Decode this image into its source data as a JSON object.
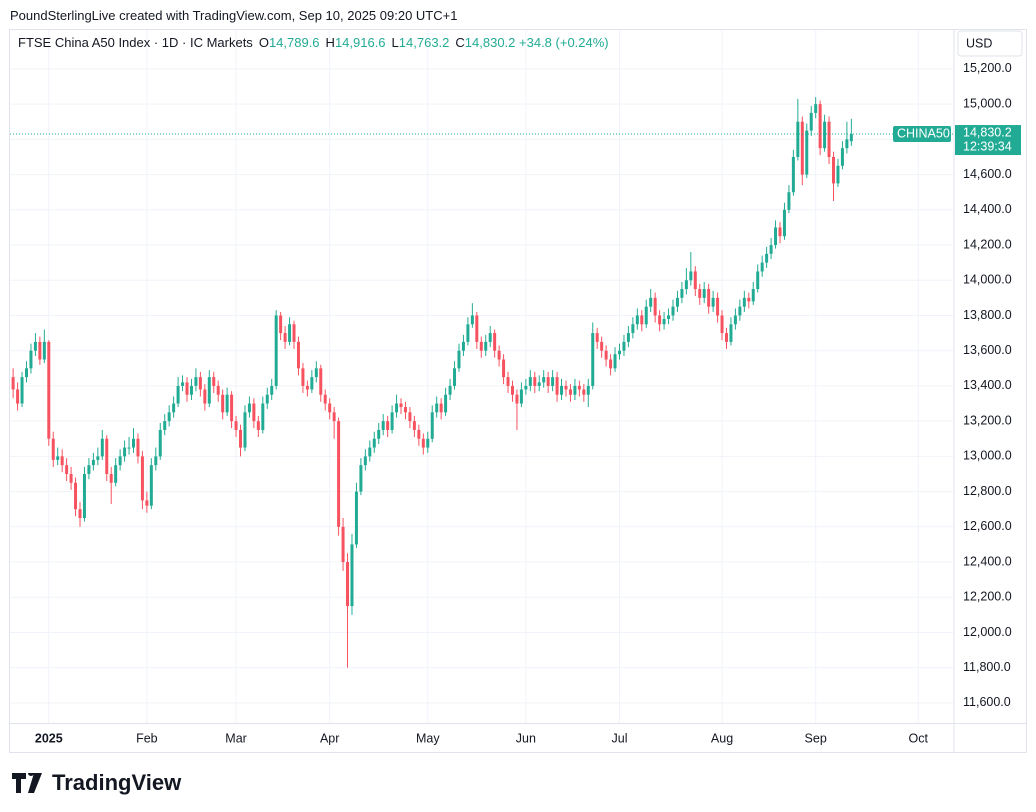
{
  "top_text": "PoundSterlingLive created with TradingView.com, Sep 10, 2025 09:20 UTC+1",
  "logo": "TradingView",
  "chart_data": {
    "type": "candlestick",
    "title": "FTSE China A50 Index · 1D · IC Markets",
    "ohlc_header": [
      {
        "label": "O",
        "value": "14,789.6"
      },
      {
        "label": "H",
        "value": "14,916.6"
      },
      {
        "label": "L",
        "value": "14,763.2"
      },
      {
        "label": "C",
        "value": "14,830.2"
      }
    ],
    "change": "+34.8 (+0.24%)",
    "currency": "USD",
    "symbol_tag": "CHINA50",
    "last_label": "14,830.2",
    "countdown": "12:39:34",
    "up_color": "#22ab94",
    "down_color": "#f7525f",
    "grid": true,
    "ylim": [
      11486,
      15421
    ],
    "xlim": [
      -0.7,
      210.8
    ],
    "yticks": [
      {
        "value": 11600,
        "label": "11,600.0"
      },
      {
        "value": 11800,
        "label": "11,800.0"
      },
      {
        "value": 12000,
        "label": "12,000.0"
      },
      {
        "value": 12200,
        "label": "12,200.0"
      },
      {
        "value": 12400,
        "label": "12,400.0"
      },
      {
        "value": 12600,
        "label": "12,600.0"
      },
      {
        "value": 12800,
        "label": "12,800.0"
      },
      {
        "value": 13000,
        "label": "13,000.0"
      },
      {
        "value": 13200,
        "label": "13,200.0"
      },
      {
        "value": 13400,
        "label": "13,400.0"
      },
      {
        "value": 13600,
        "label": "13,600.0"
      },
      {
        "value": 13800,
        "label": "13,800.0"
      },
      {
        "value": 14000,
        "label": "14,000.0"
      },
      {
        "value": 14200,
        "label": "14,200.0"
      },
      {
        "value": 14400,
        "label": "14,400.0"
      },
      {
        "value": 14600,
        "label": "14,600.0"
      },
      {
        "value": 14800,
        "label": "14,800.0"
      },
      {
        "value": 15000,
        "label": "15,000.0"
      },
      {
        "value": 15200,
        "label": "15,200.0"
      }
    ],
    "xticks": [
      {
        "value": 8,
        "label": "2025"
      },
      {
        "value": 30,
        "label": "Feb"
      },
      {
        "value": 50,
        "label": "Mar"
      },
      {
        "value": 71,
        "label": "Apr"
      },
      {
        "value": 93,
        "label": "May"
      },
      {
        "value": 115,
        "label": "Jun"
      },
      {
        "value": 136,
        "label": "Jul"
      },
      {
        "value": 159,
        "label": "Aug"
      },
      {
        "value": 180,
        "label": "Sep"
      },
      {
        "value": 203,
        "label": "Oct"
      }
    ],
    "x": [
      0,
      1,
      2,
      3,
      4,
      5,
      6,
      7,
      8,
      9,
      10,
      11,
      12,
      13,
      14,
      15,
      16,
      17,
      18,
      19,
      20,
      21,
      22,
      23,
      24,
      25,
      26,
      27,
      28,
      29,
      30,
      31,
      32,
      33,
      34,
      35,
      36,
      37,
      38,
      39,
      40,
      41,
      42,
      43,
      44,
      45,
      46,
      47,
      48,
      49,
      50,
      51,
      52,
      53,
      54,
      55,
      56,
      57,
      58,
      59,
      60,
      61,
      62,
      63,
      64,
      65,
      66,
      67,
      68,
      69,
      70,
      71,
      72,
      73,
      74,
      75,
      76,
      77,
      78,
      79,
      80,
      81,
      82,
      83,
      84,
      85,
      86,
      87,
      88,
      89,
      90,
      91,
      92,
      93,
      94,
      95,
      96,
      97,
      98,
      99,
      100,
      101,
      102,
      103,
      104,
      105,
      106,
      107,
      108,
      109,
      110,
      111,
      112,
      113,
      114,
      115,
      116,
      117,
      118,
      119,
      120,
      121,
      122,
      123,
      124,
      125,
      126,
      127,
      128,
      129,
      130,
      131,
      132,
      133,
      134,
      135,
      136,
      137,
      138,
      139,
      140,
      141,
      142,
      143,
      144,
      145,
      146,
      147,
      148,
      149,
      150,
      151,
      152,
      153,
      154,
      155,
      156,
      157,
      158,
      159,
      160,
      161,
      162,
      163,
      164,
      165,
      166,
      167,
      168,
      169,
      170,
      171,
      172,
      173,
      174,
      175,
      176,
      177,
      178,
      179,
      180,
      181,
      182,
      183,
      184,
      185,
      186,
      187,
      188
    ],
    "ohlc": [
      [
        13450,
        13500,
        13330,
        13380
      ],
      [
        13380,
        13420,
        13260,
        13300
      ],
      [
        13300,
        13480,
        13280,
        13450
      ],
      [
        13450,
        13540,
        13420,
        13500
      ],
      [
        13500,
        13640,
        13470,
        13600
      ],
      [
        13600,
        13700,
        13570,
        13650
      ],
      [
        13650,
        13680,
        13520,
        13550
      ],
      [
        13550,
        13720,
        13530,
        13650
      ],
      [
        13650,
        13660,
        13060,
        13100
      ],
      [
        13100,
        13140,
        12940,
        12980
      ],
      [
        12980,
        13050,
        12950,
        13000
      ],
      [
        13000,
        13040,
        12910,
        12950
      ],
      [
        12950,
        12990,
        12860,
        12900
      ],
      [
        12900,
        12940,
        12810,
        12850
      ],
      [
        12850,
        12880,
        12660,
        12700
      ],
      [
        12700,
        12740,
        12600,
        12650
      ],
      [
        12650,
        12940,
        12630,
        12900
      ],
      [
        12900,
        12990,
        12870,
        12950
      ],
      [
        12950,
        13020,
        12920,
        12980
      ],
      [
        12980,
        13050,
        12950,
        13000
      ],
      [
        13000,
        13150,
        12980,
        13100
      ],
      [
        13100,
        13120,
        12860,
        12900
      ],
      [
        12900,
        12940,
        12730,
        12850
      ],
      [
        12850,
        12990,
        12830,
        12950
      ],
      [
        12950,
        13040,
        12920,
        13000
      ],
      [
        13000,
        13090,
        12970,
        13050
      ],
      [
        13050,
        13110,
        13010,
        13050
      ],
      [
        13050,
        13160,
        13020,
        13100
      ],
      [
        13100,
        13130,
        12960,
        13000
      ],
      [
        13000,
        13030,
        12700,
        12750
      ],
      [
        12750,
        12800,
        12680,
        12720
      ],
      [
        12720,
        12990,
        12700,
        12950
      ],
      [
        12950,
        13050,
        12920,
        13000
      ],
      [
        13000,
        13190,
        12980,
        13150
      ],
      [
        13150,
        13240,
        13120,
        13200
      ],
      [
        13200,
        13290,
        13170,
        13250
      ],
      [
        13250,
        13340,
        13220,
        13300
      ],
      [
        13300,
        13450,
        13280,
        13400
      ],
      [
        13400,
        13460,
        13370,
        13420
      ],
      [
        13420,
        13450,
        13310,
        13350
      ],
      [
        13350,
        13440,
        13320,
        13400
      ],
      [
        13400,
        13500,
        13370,
        13450
      ],
      [
        13450,
        13480,
        13340,
        13380
      ],
      [
        13380,
        13410,
        13260,
        13300
      ],
      [
        13300,
        13490,
        13280,
        13450
      ],
      [
        13450,
        13480,
        13360,
        13400
      ],
      [
        13400,
        13430,
        13310,
        13350
      ],
      [
        13350,
        13380,
        13210,
        13250
      ],
      [
        13250,
        13390,
        13230,
        13350
      ],
      [
        13350,
        13370,
        13160,
        13200
      ],
      [
        13200,
        13230,
        13110,
        13150
      ],
      [
        13150,
        13180,
        13000,
        13050
      ],
      [
        13050,
        13290,
        13030,
        13250
      ],
      [
        13250,
        13340,
        13220,
        13300
      ],
      [
        13300,
        13330,
        13160,
        13200
      ],
      [
        13200,
        13230,
        13110,
        13150
      ],
      [
        13150,
        13340,
        13130,
        13300
      ],
      [
        13300,
        13390,
        13270,
        13350
      ],
      [
        13350,
        13440,
        13320,
        13400
      ],
      [
        13400,
        13830,
        13380,
        13800
      ],
      [
        13800,
        13820,
        13660,
        13700
      ],
      [
        13700,
        13740,
        13610,
        13650
      ],
      [
        13650,
        13790,
        13630,
        13750
      ],
      [
        13750,
        13770,
        13610,
        13650
      ],
      [
        13650,
        13680,
        13460,
        13500
      ],
      [
        13500,
        13530,
        13360,
        13400
      ],
      [
        13400,
        13430,
        13340,
        13380
      ],
      [
        13380,
        13490,
        13360,
        13450
      ],
      [
        13450,
        13540,
        13420,
        13500
      ],
      [
        13500,
        13520,
        13310,
        13350
      ],
      [
        13350,
        13380,
        13260,
        13300
      ],
      [
        13300,
        13330,
        13210,
        13250
      ],
      [
        13250,
        13280,
        13100,
        13200
      ],
      [
        13200,
        13220,
        12550,
        12600
      ],
      [
        12600,
        12650,
        12350,
        12400
      ],
      [
        12400,
        12450,
        11800,
        12150
      ],
      [
        12150,
        12560,
        12100,
        12500
      ],
      [
        12500,
        12850,
        12480,
        12800
      ],
      [
        12800,
        12990,
        12780,
        12950
      ],
      [
        12950,
        13040,
        12920,
        13000
      ],
      [
        13000,
        13090,
        12970,
        13050
      ],
      [
        13050,
        13140,
        13020,
        13100
      ],
      [
        13100,
        13190,
        13070,
        13150
      ],
      [
        13150,
        13240,
        13120,
        13200
      ],
      [
        13200,
        13230,
        13110,
        13150
      ],
      [
        13150,
        13290,
        13130,
        13250
      ],
      [
        13250,
        13350,
        13220,
        13300
      ],
      [
        13300,
        13330,
        13240,
        13280
      ],
      [
        13280,
        13310,
        13210,
        13250
      ],
      [
        13250,
        13280,
        13160,
        13200
      ],
      [
        13200,
        13230,
        13110,
        13150
      ],
      [
        13150,
        13180,
        13060,
        13100
      ],
      [
        13100,
        13130,
        13010,
        13050
      ],
      [
        13050,
        13140,
        13020,
        13100
      ],
      [
        13100,
        13290,
        13080,
        13250
      ],
      [
        13250,
        13340,
        13220,
        13300
      ],
      [
        13300,
        13330,
        13210,
        13250
      ],
      [
        13250,
        13390,
        13230,
        13350
      ],
      [
        13350,
        13440,
        13320,
        13400
      ],
      [
        13400,
        13540,
        13380,
        13500
      ],
      [
        13500,
        13640,
        13480,
        13600
      ],
      [
        13600,
        13690,
        13570,
        13650
      ],
      [
        13650,
        13790,
        13630,
        13750
      ],
      [
        13750,
        13870,
        13730,
        13800
      ],
      [
        13800,
        13820,
        13610,
        13650
      ],
      [
        13650,
        13680,
        13560,
        13600
      ],
      [
        13600,
        13690,
        13570,
        13650
      ],
      [
        13650,
        13740,
        13620,
        13700
      ],
      [
        13700,
        13720,
        13560,
        13600
      ],
      [
        13600,
        13630,
        13510,
        13550
      ],
      [
        13550,
        13580,
        13410,
        13450
      ],
      [
        13450,
        13480,
        13360,
        13400
      ],
      [
        13400,
        13430,
        13310,
        13350
      ],
      [
        13350,
        13380,
        13150,
        13300
      ],
      [
        13300,
        13420,
        13280,
        13380
      ],
      [
        13380,
        13440,
        13350,
        13400
      ],
      [
        13400,
        13490,
        13370,
        13450
      ],
      [
        13450,
        13480,
        13360,
        13400
      ],
      [
        13400,
        13460,
        13370,
        13420
      ],
      [
        13420,
        13490,
        13390,
        13450
      ],
      [
        13450,
        13480,
        13360,
        13400
      ],
      [
        13400,
        13490,
        13370,
        13450
      ],
      [
        13450,
        13480,
        13310,
        13350
      ],
      [
        13350,
        13440,
        13320,
        13400
      ],
      [
        13400,
        13430,
        13340,
        13380
      ],
      [
        13380,
        13410,
        13310,
        13350
      ],
      [
        13350,
        13440,
        13320,
        13400
      ],
      [
        13400,
        13430,
        13340,
        13380
      ],
      [
        13380,
        13410,
        13310,
        13350
      ],
      [
        13350,
        13440,
        13280,
        13400
      ],
      [
        13400,
        13760,
        13380,
        13700
      ],
      [
        13700,
        13730,
        13610,
        13650
      ],
      [
        13650,
        13680,
        13560,
        13600
      ],
      [
        13600,
        13630,
        13510,
        13550
      ],
      [
        13550,
        13580,
        13460,
        13500
      ],
      [
        13500,
        13620,
        13480,
        13580
      ],
      [
        13580,
        13640,
        13550,
        13600
      ],
      [
        13600,
        13690,
        13570,
        13650
      ],
      [
        13650,
        13740,
        13620,
        13700
      ],
      [
        13700,
        13790,
        13670,
        13750
      ],
      [
        13750,
        13840,
        13720,
        13800
      ],
      [
        13800,
        13830,
        13710,
        13750
      ],
      [
        13750,
        13890,
        13730,
        13850
      ],
      [
        13850,
        13950,
        13820,
        13900
      ],
      [
        13900,
        13930,
        13760,
        13800
      ],
      [
        13800,
        13830,
        13710,
        13750
      ],
      [
        13750,
        13820,
        13720,
        13780
      ],
      [
        13780,
        13840,
        13750,
        13800
      ],
      [
        13800,
        13890,
        13770,
        13850
      ],
      [
        13850,
        13940,
        13820,
        13900
      ],
      [
        13900,
        13990,
        13870,
        13950
      ],
      [
        13950,
        14070,
        13920,
        14000
      ],
      [
        14000,
        14160,
        13970,
        14050
      ],
      [
        14050,
        14080,
        13910,
        13950
      ],
      [
        13950,
        13980,
        13860,
        13900
      ],
      [
        13900,
        13990,
        13870,
        13950
      ],
      [
        13950,
        13980,
        13810,
        13850
      ],
      [
        13850,
        13940,
        13820,
        13900
      ],
      [
        13900,
        13930,
        13760,
        13800
      ],
      [
        13800,
        13830,
        13660,
        13700
      ],
      [
        13700,
        13730,
        13610,
        13650
      ],
      [
        13650,
        13790,
        13630,
        13750
      ],
      [
        13750,
        13840,
        13720,
        13800
      ],
      [
        13800,
        13890,
        13770,
        13850
      ],
      [
        13850,
        13940,
        13820,
        13900
      ],
      [
        13900,
        13930,
        13840,
        13880
      ],
      [
        13880,
        13990,
        13860,
        13950
      ],
      [
        13950,
        14090,
        13930,
        14050
      ],
      [
        14050,
        14140,
        14020,
        14100
      ],
      [
        14100,
        14190,
        14070,
        14150
      ],
      [
        14150,
        14240,
        14120,
        14200
      ],
      [
        14200,
        14340,
        14180,
        14300
      ],
      [
        14300,
        14330,
        14210,
        14250
      ],
      [
        14250,
        14440,
        14230,
        14400
      ],
      [
        14400,
        14540,
        14380,
        14500
      ],
      [
        14500,
        14740,
        14480,
        14700
      ],
      [
        14700,
        15030,
        14680,
        14900
      ],
      [
        14900,
        14930,
        14540,
        14600
      ],
      [
        14600,
        14890,
        14580,
        14850
      ],
      [
        14850,
        14990,
        14820,
        14950
      ],
      [
        14950,
        15040,
        14920,
        15000
      ],
      [
        15000,
        15020,
        14710,
        14750
      ],
      [
        14750,
        14940,
        14730,
        14900
      ],
      [
        14900,
        14930,
        14660,
        14700
      ],
      [
        14700,
        14730,
        14450,
        14550
      ],
      [
        14550,
        14690,
        14530,
        14650
      ],
      [
        14650,
        14790,
        14630,
        14750
      ],
      [
        14750,
        14900,
        14720,
        14800
      ],
      [
        14789.6,
        14916.6,
        14763.2,
        14830.2
      ]
    ]
  }
}
